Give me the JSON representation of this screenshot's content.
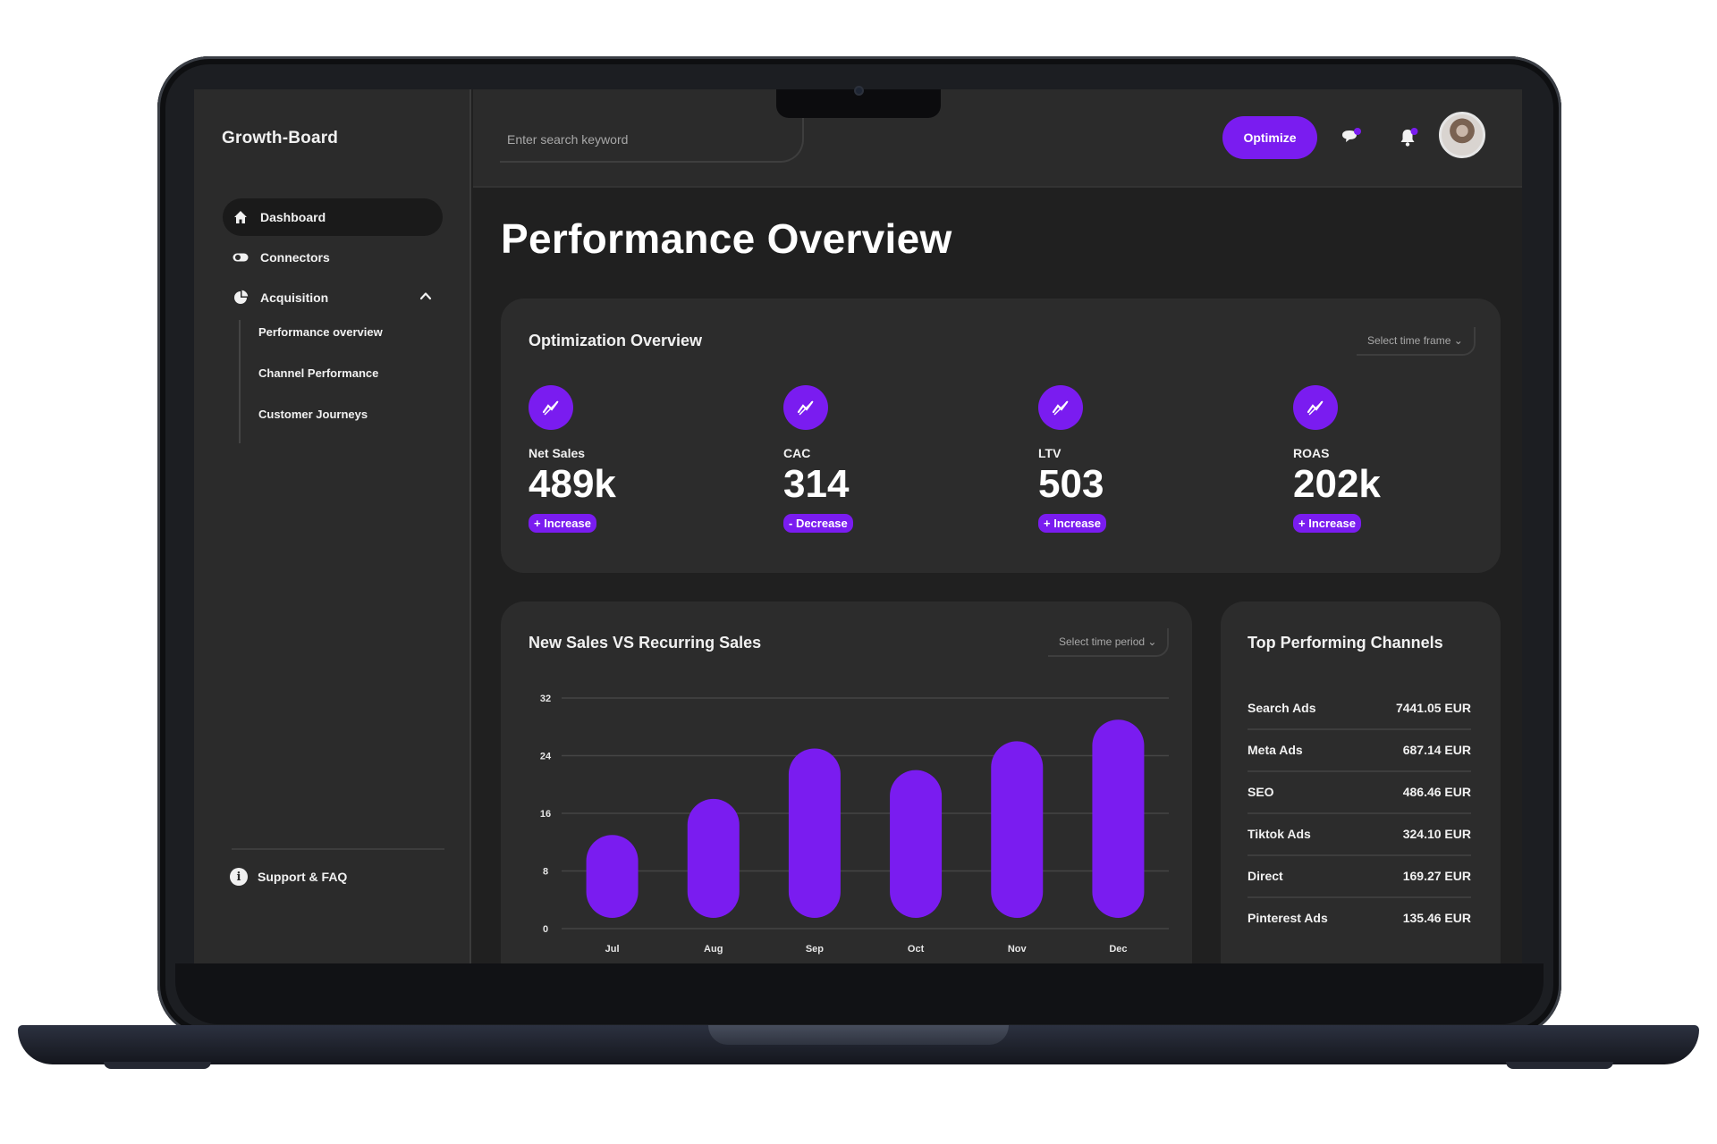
{
  "brand": "Growth-Board",
  "search": {
    "placeholder": "Enter search keyword"
  },
  "sidebar": {
    "items": [
      {
        "label": "Dashboard",
        "icon": "home-icon"
      },
      {
        "label": "Connectors",
        "icon": "toggle-icon"
      },
      {
        "label": "Acquisition",
        "icon": "pie-chart-icon"
      }
    ],
    "sub_items": [
      "Performance overview",
      "Channel Performance",
      "Customer Journeys"
    ],
    "support": "Support & FAQ"
  },
  "topbar": {
    "optimize_label": "Optimize",
    "icons": [
      "chat-icon",
      "bell-icon",
      "avatar"
    ]
  },
  "page_title": "Performance Overview",
  "optimization": {
    "title": "Optimization Overview",
    "timeframe_label": "Select time frame",
    "metrics": [
      {
        "label": "Net Sales",
        "value": "489k",
        "trend": "+ Increase"
      },
      {
        "label": "CAC",
        "value": "314",
        "trend": "- Decrease"
      },
      {
        "label": "LTV",
        "value": "503",
        "trend": "+ Increase"
      },
      {
        "label": "ROAS",
        "value": "202k",
        "trend": "+ Increase"
      }
    ]
  },
  "sales_chart": {
    "title": "New Sales VS Recurring Sales",
    "period_label": "Select time period"
  },
  "chart_data": {
    "type": "bar",
    "title": "New Sales VS Recurring Sales",
    "categories": [
      "Jul",
      "Aug",
      "Sep",
      "Oct",
      "Nov",
      "Dec"
    ],
    "values": [
      13,
      18,
      25,
      22,
      26,
      29
    ],
    "yticks": [
      0,
      8,
      16,
      24,
      32
    ],
    "ylim": [
      0,
      32
    ],
    "xlabel": "",
    "ylabel": "",
    "grid": true,
    "bar_color": "#7a1cf0"
  },
  "channels": {
    "title": "Top Performing Channels",
    "rows": [
      {
        "name": "Search Ads",
        "value": "7441.05 EUR"
      },
      {
        "name": "Meta Ads",
        "value": "687.14 EUR"
      },
      {
        "name": "SEO",
        "value": "486.46 EUR"
      },
      {
        "name": "Tiktok Ads",
        "value": "324.10 EUR"
      },
      {
        "name": "Direct",
        "value": "169.27 EUR"
      },
      {
        "name": "Pinterest Ads",
        "value": "135.46 EUR"
      }
    ]
  },
  "colors": {
    "accent": "#7a1cf0",
    "background": "#202020",
    "panel": "#2c2c2c",
    "sidebar": "#2b2b2b"
  }
}
